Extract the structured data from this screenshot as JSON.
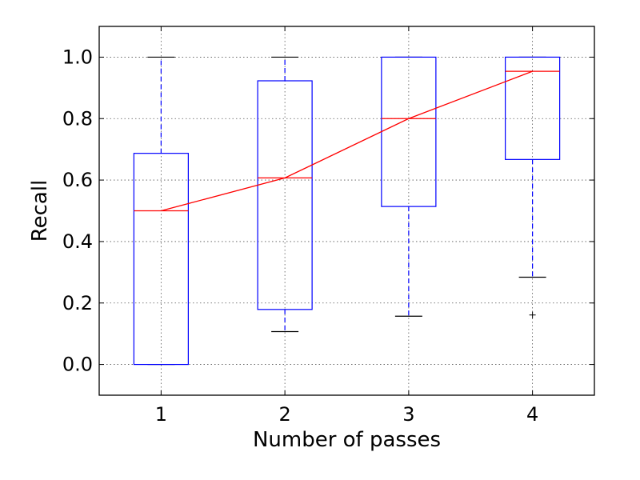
{
  "chart_data": {
    "type": "box",
    "xlabel": "Number of passes",
    "ylabel": "Recall",
    "categories": [
      "1",
      "2",
      "3",
      "4"
    ],
    "ylim": [
      -0.1,
      1.1
    ],
    "yticks": [
      "0.0",
      "0.2",
      "0.4",
      "0.6",
      "0.8",
      "1.0"
    ],
    "ytick_values": [
      0.0,
      0.2,
      0.4,
      0.6,
      0.8,
      1.0
    ],
    "grid": true,
    "boxes": [
      {
        "category": "1",
        "whisker_low": 0.0,
        "q1": 0.0,
        "median": 0.5,
        "q3": 0.687,
        "whisker_high": 1.0,
        "outliers": []
      },
      {
        "category": "2",
        "whisker_low": 0.107,
        "q1": 0.179,
        "median": 0.607,
        "q3": 0.923,
        "whisker_high": 1.0,
        "outliers": []
      },
      {
        "category": "3",
        "whisker_low": 0.157,
        "q1": 0.514,
        "median": 0.8,
        "q3": 1.0,
        "whisker_high": 1.0,
        "outliers": []
      },
      {
        "category": "4",
        "whisker_low": 0.284,
        "q1": 0.667,
        "median": 0.954,
        "q3": 1.0,
        "whisker_high": 1.0,
        "outliers": [
          0.161
        ]
      }
    ],
    "median_line": {
      "values": [
        0.5,
        0.607,
        0.8,
        0.954
      ]
    },
    "colors": {
      "box": "#0000ff",
      "median": "#ff0000",
      "whisker_cap": "#000000",
      "grid": "#555555"
    }
  }
}
